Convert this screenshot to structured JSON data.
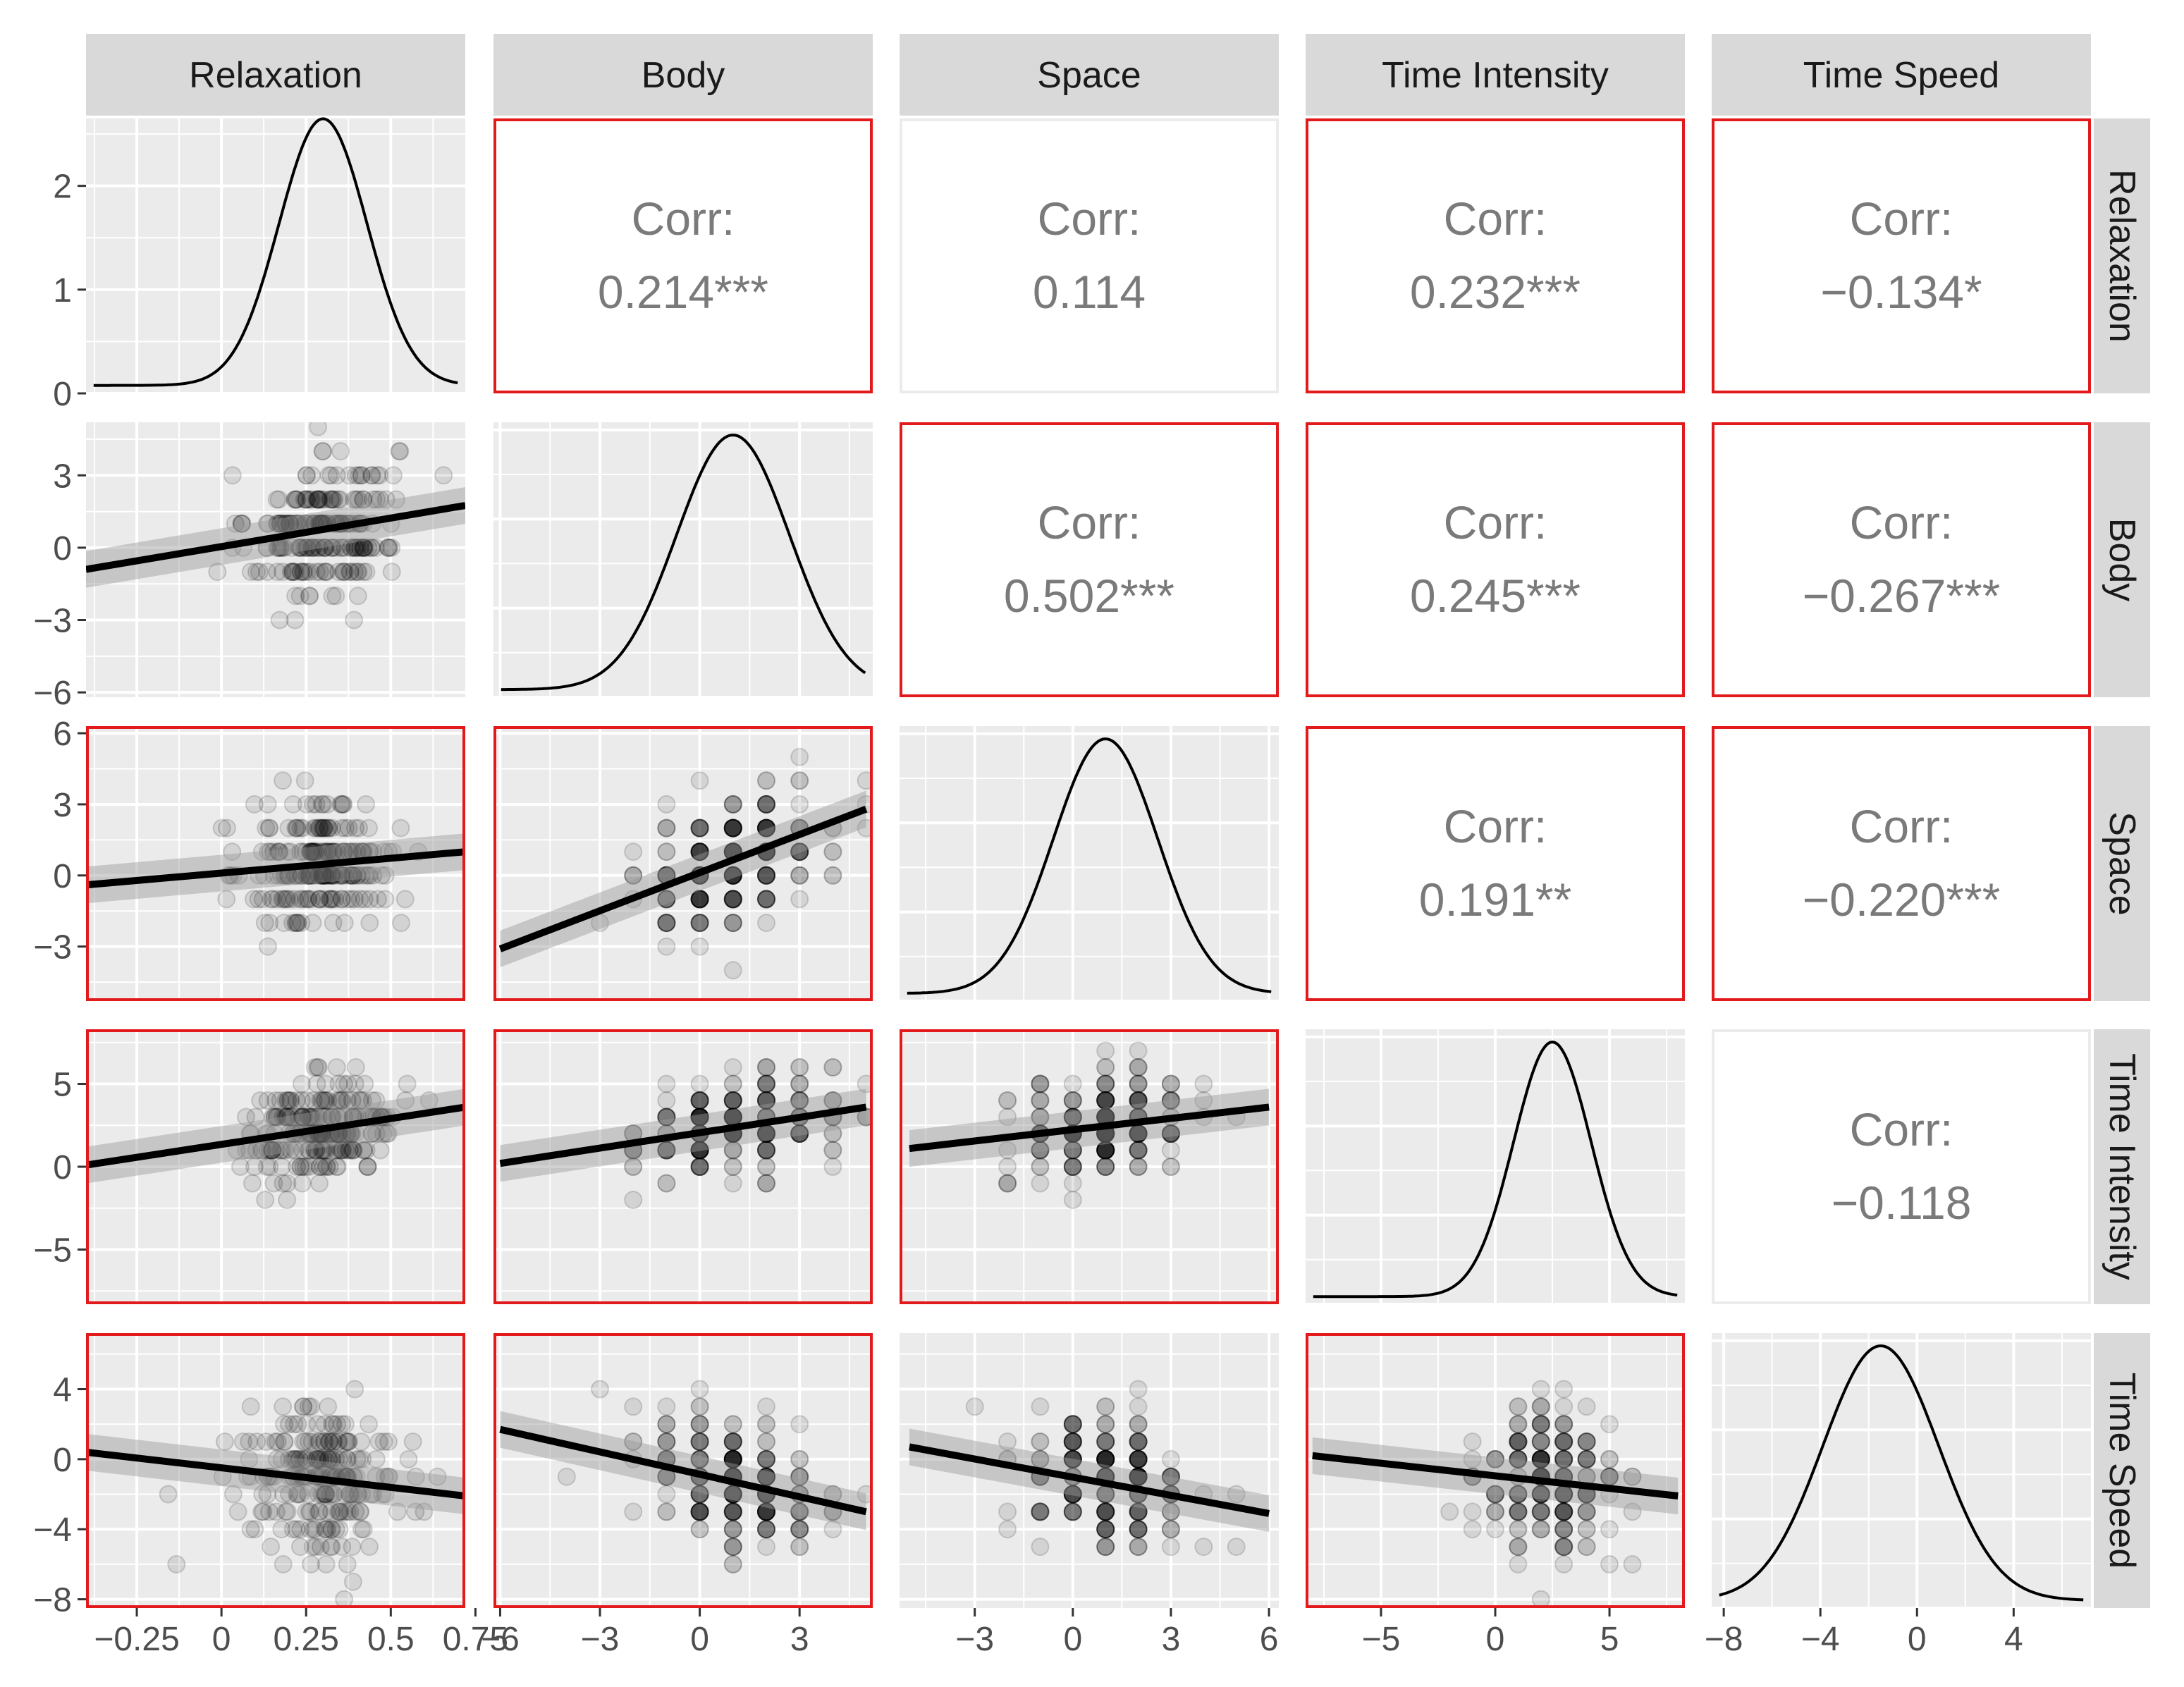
{
  "chart_data": {
    "type": "scatter-matrix",
    "title": "",
    "variables": [
      "Relaxation",
      "Body",
      "Space",
      "Time Intensity",
      "Time Speed"
    ],
    "highlight_color": "#e31a1c",
    "point_color": "#000000",
    "panel_background": "#ebebeb",
    "strip_background": "#d9d9d9",
    "axes": [
      {
        "range": [
          -0.4,
          0.72
        ],
        "ticks": [
          -0.25,
          0,
          0.25,
          0.5,
          0.75
        ],
        "tick_labels": [
          "-0.25",
          "0",
          "0.25",
          "0.5",
          "0.75"
        ]
      },
      {
        "range": [
          -6.2,
          5.2
        ],
        "ticks": [
          -6,
          -3,
          0,
          3
        ],
        "tick_labels": [
          "-6",
          "-3",
          "0",
          "3"
        ]
      },
      {
        "range": [
          -5.3,
          6.3
        ],
        "ticks": [
          -3,
          0,
          3,
          6
        ],
        "tick_labels": [
          "-3",
          "0",
          "3",
          "6"
        ]
      },
      {
        "range": [
          -8.3,
          8.3
        ],
        "ticks": [
          -5,
          0,
          5
        ],
        "tick_labels": [
          "-5",
          "0",
          "5"
        ]
      },
      {
        "range": [
          -8.5,
          7.2
        ],
        "ticks": [
          -8,
          -4,
          0,
          4
        ],
        "tick_labels": [
          "-8",
          "-4",
          "0",
          "4"
        ]
      }
    ],
    "density_y_axis": {
      "range": [
        0,
        2.65
      ],
      "ticks": [
        0,
        1,
        2
      ],
      "tick_labels": [
        "0",
        "1",
        "2"
      ]
    },
    "x_tick_labels": [
      [
        "−0.25",
        "0",
        "0.25",
        "0.5",
        "0.75"
      ],
      [
        "−6",
        "−3",
        "0",
        "3"
      ],
      [
        "−3",
        "0",
        "3",
        "6"
      ],
      [
        "−5",
        "0",
        "5"
      ],
      [
        "−8",
        "−4",
        "0",
        "4"
      ]
    ],
    "y_tick_labels": [
      [
        "0",
        "1",
        "2"
      ],
      [
        "−6",
        "−3",
        "0",
        "3"
      ],
      [
        "−3",
        "0",
        "3",
        "6"
      ],
      [
        "−5",
        "0",
        "5"
      ],
      [
        "−8",
        "−4",
        "0",
        "4"
      ]
    ],
    "densities": [
      {
        "variable": "Relaxation",
        "mode": 0.3,
        "sd": 0.13,
        "peak": 2.57
      },
      {
        "variable": "Body",
        "mode": 1.0,
        "sd": 1.7,
        "peak": 0.42
      },
      {
        "variable": "Space",
        "mode": 1.0,
        "sd": 1.6,
        "peak": 0.35
      },
      {
        "variable": "Time Intensity",
        "mode": 2.5,
        "sd": 1.7,
        "peak": 0.27
      },
      {
        "variable": "Time Speed",
        "mode": -1.5,
        "sd": 2.4,
        "peak": 0.17
      }
    ],
    "correlations": [
      {
        "row": 0,
        "col": 1,
        "label": "Corr:",
        "value": "0.214***",
        "highlight": true
      },
      {
        "row": 0,
        "col": 2,
        "label": "Corr:",
        "value": "0.114",
        "highlight": false
      },
      {
        "row": 0,
        "col": 3,
        "label": "Corr:",
        "value": "0.232***",
        "highlight": true
      },
      {
        "row": 0,
        "col": 4,
        "label": "Corr:",
        "value": "−0.134*",
        "highlight": true
      },
      {
        "row": 1,
        "col": 2,
        "label": "Corr:",
        "value": "0.502***",
        "highlight": true
      },
      {
        "row": 1,
        "col": 3,
        "label": "Corr:",
        "value": "0.245***",
        "highlight": true
      },
      {
        "row": 1,
        "col": 4,
        "label": "Corr:",
        "value": "−0.267***",
        "highlight": true
      },
      {
        "row": 2,
        "col": 3,
        "label": "Corr:",
        "value": "0.191**",
        "highlight": true
      },
      {
        "row": 2,
        "col": 4,
        "label": "Corr:",
        "value": "−0.220***",
        "highlight": true
      },
      {
        "row": 3,
        "col": 4,
        "label": "Corr:",
        "value": "−0.118",
        "highlight": false
      }
    ],
    "scatter_panels": [
      {
        "row": 1,
        "col": 0,
        "highlight": false,
        "fit": {
          "x": [
            -0.4,
            0.72
          ],
          "y": [
            -0.9,
            1.75
          ]
        }
      },
      {
        "row": 2,
        "col": 0,
        "highlight": true,
        "fit": {
          "x": [
            -0.4,
            0.72
          ],
          "y": [
            -0.4,
            1.0
          ]
        }
      },
      {
        "row": 2,
        "col": 1,
        "highlight": true,
        "fit": {
          "x": [
            -6.0,
            5.0
          ],
          "y": [
            -3.1,
            2.8
          ]
        }
      },
      {
        "row": 3,
        "col": 0,
        "highlight": true,
        "fit": {
          "x": [
            -0.4,
            0.72
          ],
          "y": [
            0.1,
            3.6
          ]
        }
      },
      {
        "row": 3,
        "col": 1,
        "highlight": true,
        "fit": {
          "x": [
            -6.0,
            5.0
          ],
          "y": [
            0.2,
            3.6
          ]
        }
      },
      {
        "row": 3,
        "col": 2,
        "highlight": true,
        "fit": {
          "x": [
            -5.0,
            6.0
          ],
          "y": [
            1.1,
            3.6
          ]
        }
      },
      {
        "row": 4,
        "col": 0,
        "highlight": true,
        "fit": {
          "x": [
            -0.4,
            0.72
          ],
          "y": [
            0.4,
            -2.1
          ]
        }
      },
      {
        "row": 4,
        "col": 1,
        "highlight": true,
        "fit": {
          "x": [
            -6.0,
            5.0
          ],
          "y": [
            1.7,
            -3.0
          ]
        }
      },
      {
        "row": 4,
        "col": 2,
        "highlight": false,
        "fit": {
          "x": [
            -5.0,
            6.0
          ],
          "y": [
            0.7,
            -3.1
          ]
        }
      },
      {
        "row": 4,
        "col": 3,
        "highlight": true,
        "fit": {
          "x": [
            -8.0,
            8.0
          ],
          "y": [
            0.2,
            -2.1
          ]
        }
      }
    ]
  }
}
